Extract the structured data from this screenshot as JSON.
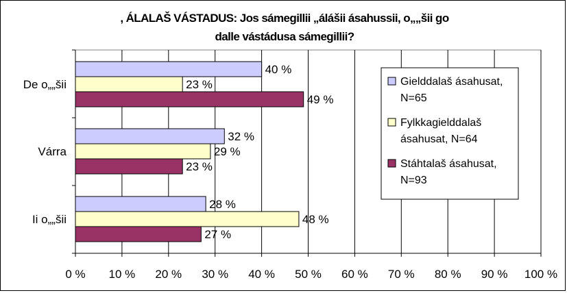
{
  "chart_data": {
    "type": "bar",
    "orientation": "horizontal",
    "title_lines": [
      ", ÁLALAŠ VÁSTADUS: Jos sámegillii „álášii ásahussii, o„„šii go",
      "dalle vástádusa sámegillii?"
    ],
    "categories": [
      "De o„„šii",
      "Várra",
      "Ii o„„šii"
    ],
    "series": [
      {
        "name_lines": [
          "Gielddalaš ásahusat,",
          "N=65"
        ],
        "values": [
          40,
          32,
          28
        ],
        "color": "#ccccff"
      },
      {
        "name_lines": [
          "Fylkkagielddalaš",
          "ásahusat, N=64"
        ],
        "values": [
          23,
          29,
          48
        ],
        "color": "#ffffcc"
      },
      {
        "name_lines": [
          "Stáhtalaš ásahusat,",
          "N=93"
        ],
        "values": [
          49,
          23,
          27
        ],
        "color": "#993366"
      }
    ],
    "value_suffix": " %",
    "xlim": [
      0,
      100
    ],
    "xticks": [
      "0 %",
      "10 %",
      "20 %",
      "30 %",
      "40 %",
      "50 %",
      "60 %",
      "70 %",
      "80 %",
      "90 %",
      "100 %"
    ],
    "grid": true,
    "legend_position": "right"
  }
}
